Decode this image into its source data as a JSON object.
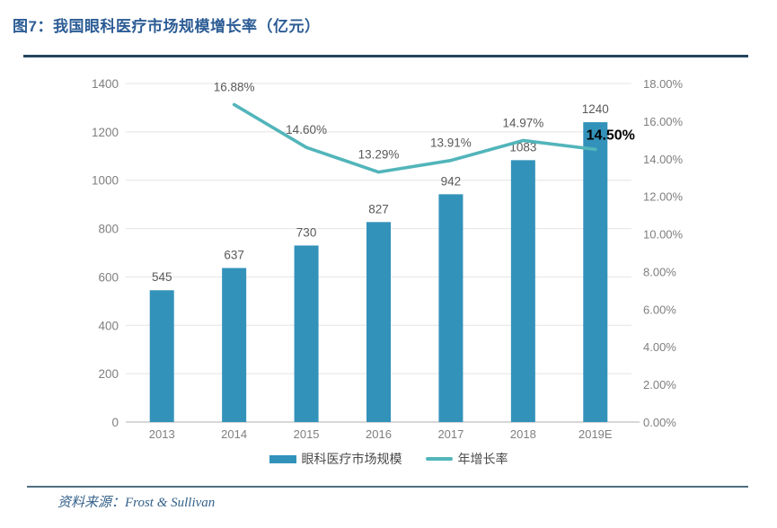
{
  "page": {
    "title": "图7：我国眼科医疗市场规模增长率（亿元）",
    "source": "资料来源：Frost & Sullivan"
  },
  "colors": {
    "title_color": "#2C5C95",
    "rule_color": "#24465F",
    "grid_color": "#E4E4E4",
    "axis_line_color": "#BFBFBF",
    "axis_label_color": "#7F7F7F",
    "data_label_color": "#595959",
    "emphasis_label_color": "#000000",
    "footer_rule_color": "#4F6F80",
    "source_color": "#336089"
  },
  "chart_data": {
    "type": "bar",
    "subtype": "combo-bar-line-dual-axis",
    "title": "图7：我国眼科医疗市场规模增长率（亿元）",
    "categories": [
      "2013",
      "2014",
      "2015",
      "2016",
      "2017",
      "2018",
      "2019E"
    ],
    "series": [
      {
        "name": "眼科医疗市场规模",
        "type": "bar",
        "axis": "left",
        "color": "#3392BA",
        "values": [
          545,
          637,
          730,
          827,
          942,
          1083,
          1240
        ],
        "value_labels": [
          "545",
          "637",
          "730",
          "827",
          "942",
          "1083",
          "1240"
        ]
      },
      {
        "name": "年增长率",
        "type": "line",
        "axis": "right",
        "color": "#52B5BA",
        "values": [
          null,
          16.88,
          14.6,
          13.29,
          13.91,
          14.97,
          14.5
        ],
        "point_labels": [
          "",
          "16.88%",
          "14.60%",
          "13.29%",
          "13.91%",
          "14.97%",
          "14.50%"
        ],
        "emphasized_point": 6
      }
    ],
    "left_axis": {
      "min": 0,
      "max": 1400,
      "step": 200,
      "tick_labels": [
        "1400",
        "1200",
        "1000",
        "800",
        "600",
        "400",
        "200",
        "0"
      ]
    },
    "right_axis": {
      "min": 0,
      "max": 18,
      "step": 2,
      "tick_labels": [
        "18.00%",
        "16.00%",
        "14.00%",
        "12.00%",
        "10.00%",
        "8.00%",
        "6.00%",
        "4.00%",
        "2.00%",
        "0.00%"
      ]
    },
    "grid": true,
    "legend_position": "bottom"
  },
  "legend": {
    "items": [
      {
        "label": "眼科医疗市场规模",
        "marker": "bar"
      },
      {
        "label": "年增长率",
        "marker": "line"
      }
    ]
  }
}
